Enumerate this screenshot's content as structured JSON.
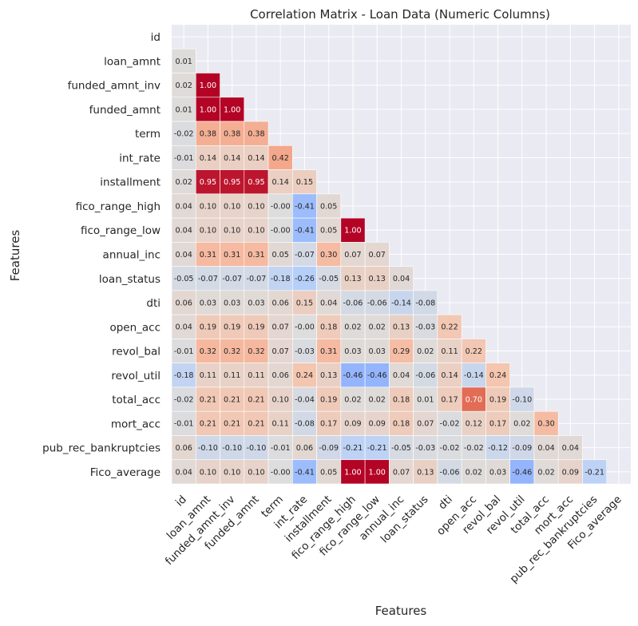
{
  "chart_data": {
    "type": "heatmap",
    "title": "Correlation Matrix - Loan Data (Numeric Columns)",
    "xlabel": "Features",
    "ylabel": "Features",
    "colormap": "coolwarm",
    "vmin": -1,
    "vmax": 1,
    "mask": "upper-triangle-including-diagonal",
    "colorbar": false,
    "background_color": "#eaeaf2",
    "labels": [
      "id",
      "loan_amnt",
      "funded_amnt_inv",
      "funded_amnt",
      "term",
      "int_rate",
      "installment",
      "fico_range_high",
      "fico_range_low",
      "annual_inc",
      "loan_status",
      "dti",
      "open_acc",
      "revol_bal",
      "revol_util",
      "total_acc",
      "mort_acc",
      "pub_rec_bankruptcies",
      "Fico_average"
    ],
    "values": [
      [],
      [
        "0.01"
      ],
      [
        "0.02",
        "1.00"
      ],
      [
        "0.01",
        "1.00",
        "1.00"
      ],
      [
        "-0.02",
        "0.38",
        "0.38",
        "0.38"
      ],
      [
        "-0.01",
        "0.14",
        "0.14",
        "0.14",
        "0.42"
      ],
      [
        "0.02",
        "0.95",
        "0.95",
        "0.95",
        "0.14",
        "0.15"
      ],
      [
        "0.04",
        "0.10",
        "0.10",
        "0.10",
        "-0.00",
        "-0.41",
        "0.05"
      ],
      [
        "0.04",
        "0.10",
        "0.10",
        "0.10",
        "-0.00",
        "-0.41",
        "0.05",
        "1.00"
      ],
      [
        "0.04",
        "0.31",
        "0.31",
        "0.31",
        "0.05",
        "-0.07",
        "0.30",
        "0.07",
        "0.07"
      ],
      [
        "-0.05",
        "-0.07",
        "-0.07",
        "-0.07",
        "-0.18",
        "-0.26",
        "-0.05",
        "0.13",
        "0.13",
        "0.04"
      ],
      [
        "0.06",
        "0.03",
        "0.03",
        "0.03",
        "0.06",
        "0.15",
        "0.04",
        "-0.06",
        "-0.06",
        "-0.14",
        "-0.08"
      ],
      [
        "0.04",
        "0.19",
        "0.19",
        "0.19",
        "0.07",
        "-0.00",
        "0.18",
        "0.02",
        "0.02",
        "0.13",
        "-0.03",
        "0.22"
      ],
      [
        "-0.01",
        "0.32",
        "0.32",
        "0.32",
        "0.07",
        "-0.03",
        "0.31",
        "0.03",
        "0.03",
        "0.29",
        "0.02",
        "0.11",
        "0.22"
      ],
      [
        "-0.18",
        "0.11",
        "0.11",
        "0.11",
        "0.06",
        "0.24",
        "0.13",
        "-0.46",
        "-0.46",
        "0.04",
        "-0.06",
        "0.14",
        "-0.14",
        "0.24"
      ],
      [
        "-0.02",
        "0.21",
        "0.21",
        "0.21",
        "0.10",
        "-0.04",
        "0.19",
        "0.02",
        "0.02",
        "0.18",
        "0.01",
        "0.17",
        "0.70",
        "0.19",
        "-0.10"
      ],
      [
        "-0.01",
        "0.21",
        "0.21",
        "0.21",
        "0.11",
        "-0.08",
        "0.17",
        "0.09",
        "0.09",
        "0.18",
        "0.07",
        "-0.02",
        "0.12",
        "0.17",
        "0.02",
        "0.30"
      ],
      [
        "0.06",
        "-0.10",
        "-0.10",
        "-0.10",
        "-0.01",
        "0.06",
        "-0.09",
        "-0.21",
        "-0.21",
        "-0.05",
        "-0.03",
        "-0.02",
        "-0.02",
        "-0.12",
        "-0.09",
        "0.04",
        "0.04"
      ],
      [
        "0.04",
        "0.10",
        "0.10",
        "0.10",
        "-0.00",
        "-0.41",
        "0.05",
        "1.00",
        "1.00",
        "0.07",
        "0.13",
        "-0.06",
        "0.02",
        "0.03",
        "-0.46",
        "0.02",
        "0.09",
        "-0.21"
      ]
    ]
  }
}
